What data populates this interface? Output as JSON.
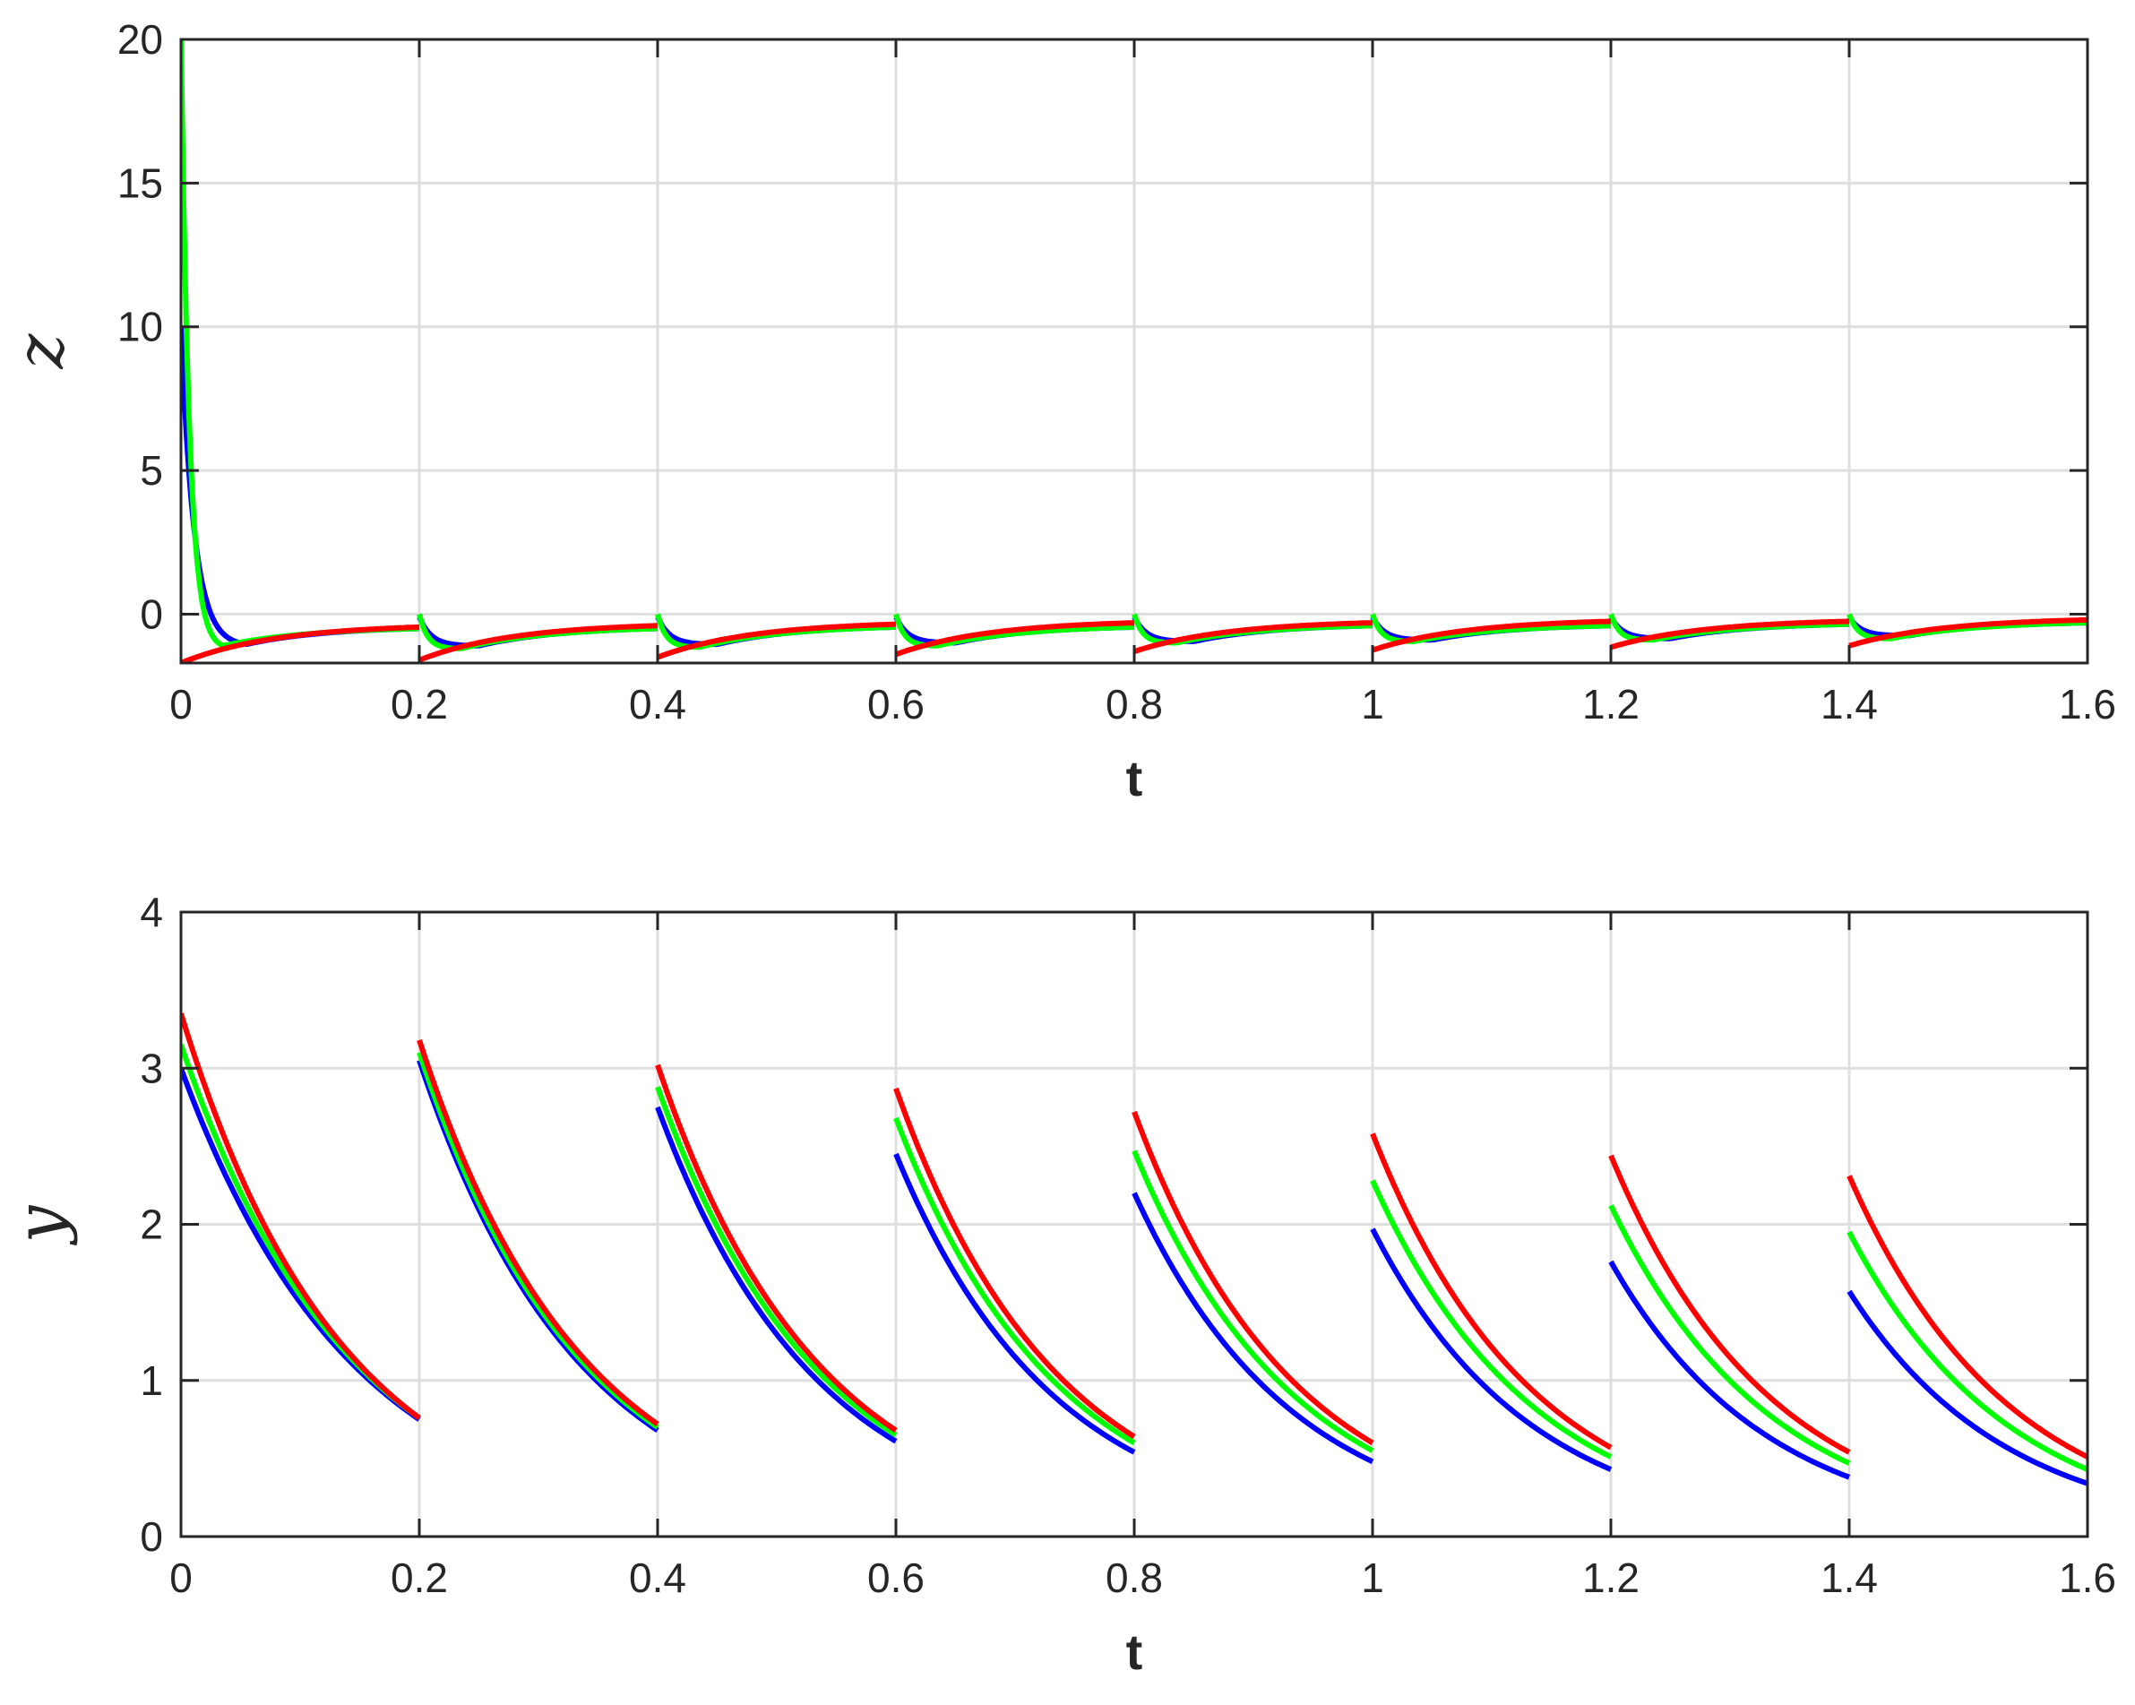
{
  "colors": {
    "blue": "#0000ff",
    "green": "#00ff00",
    "red": "#ff0000",
    "grid": "#dfdfdf",
    "axis": "#262626"
  },
  "chart_data": [
    {
      "type": "line",
      "xlabel": "t",
      "ylabel": "z",
      "xlim": [
        0,
        1.6
      ],
      "ylim": [
        -1.7,
        20
      ],
      "xticks": [
        "0",
        "0.2",
        "0.4",
        "0.6",
        "0.8",
        "1",
        "1.2",
        "1.4",
        "1.6"
      ],
      "yticks": [
        "0",
        "5",
        "10",
        "15",
        "20"
      ],
      "grid": true,
      "pulse_period": 0.2,
      "series": [
        {
          "color": "blue",
          "segments": [
            {
              "t_start": 0.0,
              "start": 10.0,
              "min": -1.05,
              "t_min": 0.055,
              "end": -0.5
            },
            {
              "t_start": 0.2,
              "start": -0.1,
              "min": -1.1,
              "t_min": 0.25,
              "end": -0.5
            },
            {
              "t_start": 0.4,
              "start": -0.1,
              "min": -1.05,
              "t_min": 0.45,
              "end": -0.45
            },
            {
              "t_start": 0.6,
              "start": -0.1,
              "min": -1.0,
              "t_min": 0.65,
              "end": -0.45
            },
            {
              "t_start": 0.8,
              "start": -0.1,
              "min": -0.95,
              "t_min": 0.85,
              "end": -0.4
            },
            {
              "t_start": 1.0,
              "start": -0.1,
              "min": -0.9,
              "t_min": 1.05,
              "end": -0.4
            },
            {
              "t_start": 1.2,
              "start": -0.1,
              "min": -0.85,
              "t_min": 1.25,
              "end": -0.35
            },
            {
              "t_start": 1.4,
              "start": -0.1,
              "min": -0.75,
              "t_min": 1.45,
              "end": -0.3
            }
          ]
        },
        {
          "color": "green",
          "segments": [
            {
              "t_start": 0.0,
              "start": 20.0,
              "min": -1.1,
              "t_min": 0.035,
              "end": -0.5
            },
            {
              "t_start": 0.2,
              "start": 0.0,
              "min": -1.2,
              "t_min": 0.235,
              "end": -0.5
            },
            {
              "t_start": 0.4,
              "start": 0.0,
              "min": -1.15,
              "t_min": 0.435,
              "end": -0.45
            },
            {
              "t_start": 0.6,
              "start": 0.0,
              "min": -1.1,
              "t_min": 0.635,
              "end": -0.45
            },
            {
              "t_start": 0.8,
              "start": 0.0,
              "min": -1.0,
              "t_min": 0.835,
              "end": -0.4
            },
            {
              "t_start": 1.0,
              "start": 0.0,
              "min": -0.95,
              "t_min": 1.035,
              "end": -0.4
            },
            {
              "t_start": 1.2,
              "start": 0.0,
              "min": -0.9,
              "t_min": 1.235,
              "end": -0.35
            },
            {
              "t_start": 1.4,
              "start": 0.0,
              "min": -0.85,
              "t_min": 1.435,
              "end": -0.3
            }
          ]
        },
        {
          "color": "red",
          "segments": [
            {
              "t_start": 0.0,
              "start": -1.7,
              "end": -0.45
            },
            {
              "t_start": 0.2,
              "start": -1.6,
              "end": -0.4
            },
            {
              "t_start": 0.4,
              "start": -1.5,
              "end": -0.35
            },
            {
              "t_start": 0.6,
              "start": -1.4,
              "end": -0.3
            },
            {
              "t_start": 0.8,
              "start": -1.3,
              "end": -0.3
            },
            {
              "t_start": 1.0,
              "start": -1.25,
              "end": -0.25
            },
            {
              "t_start": 1.2,
              "start": -1.15,
              "end": -0.25
            },
            {
              "t_start": 1.4,
              "start": -1.1,
              "end": -0.2
            }
          ]
        }
      ]
    },
    {
      "type": "line",
      "xlabel": "t",
      "ylabel": "y",
      "xlim": [
        0,
        1.6
      ],
      "ylim": [
        0,
        4
      ],
      "xticks": [
        "0",
        "0.2",
        "0.4",
        "0.6",
        "0.8",
        "1",
        "1.2",
        "1.4",
        "1.6"
      ],
      "yticks": [
        "0",
        "1",
        "2",
        "3",
        "4"
      ],
      "grid": true,
      "pulse_period": 0.2,
      "series": [
        {
          "color": "blue",
          "segments": [
            {
              "t_start": 0.0,
              "start": 3.0,
              "end": 0.75
            },
            {
              "t_start": 0.2,
              "start": 3.05,
              "end": 0.68
            },
            {
              "t_start": 0.4,
              "start": 2.75,
              "end": 0.61
            },
            {
              "t_start": 0.6,
              "start": 2.45,
              "end": 0.54
            },
            {
              "t_start": 0.8,
              "start": 2.2,
              "end": 0.48
            },
            {
              "t_start": 1.0,
              "start": 1.97,
              "end": 0.43
            },
            {
              "t_start": 1.2,
              "start": 1.76,
              "end": 0.38
            },
            {
              "t_start": 1.4,
              "start": 1.57,
              "end": 0.34
            }
          ]
        },
        {
          "color": "green",
          "segments": [
            {
              "t_start": 0.0,
              "start": 3.15,
              "end": 0.76
            },
            {
              "t_start": 0.2,
              "start": 3.1,
              "end": 0.7
            },
            {
              "t_start": 0.4,
              "start": 2.88,
              "end": 0.65
            },
            {
              "t_start": 0.6,
              "start": 2.68,
              "end": 0.6
            },
            {
              "t_start": 0.8,
              "start": 2.47,
              "end": 0.55
            },
            {
              "t_start": 1.0,
              "start": 2.28,
              "end": 0.51
            },
            {
              "t_start": 1.2,
              "start": 2.12,
              "end": 0.47
            },
            {
              "t_start": 1.4,
              "start": 1.95,
              "end": 0.43
            }
          ]
        },
        {
          "color": "red",
          "segments": [
            {
              "t_start": 0.0,
              "start": 3.35,
              "end": 0.76
            },
            {
              "t_start": 0.2,
              "start": 3.18,
              "end": 0.72
            },
            {
              "t_start": 0.4,
              "start": 3.02,
              "end": 0.68
            },
            {
              "t_start": 0.6,
              "start": 2.87,
              "end": 0.64
            },
            {
              "t_start": 0.8,
              "start": 2.72,
              "end": 0.6
            },
            {
              "t_start": 1.0,
              "start": 2.58,
              "end": 0.57
            },
            {
              "t_start": 1.2,
              "start": 2.44,
              "end": 0.54
            },
            {
              "t_start": 1.4,
              "start": 2.31,
              "end": 0.51
            }
          ]
        }
      ]
    }
  ]
}
